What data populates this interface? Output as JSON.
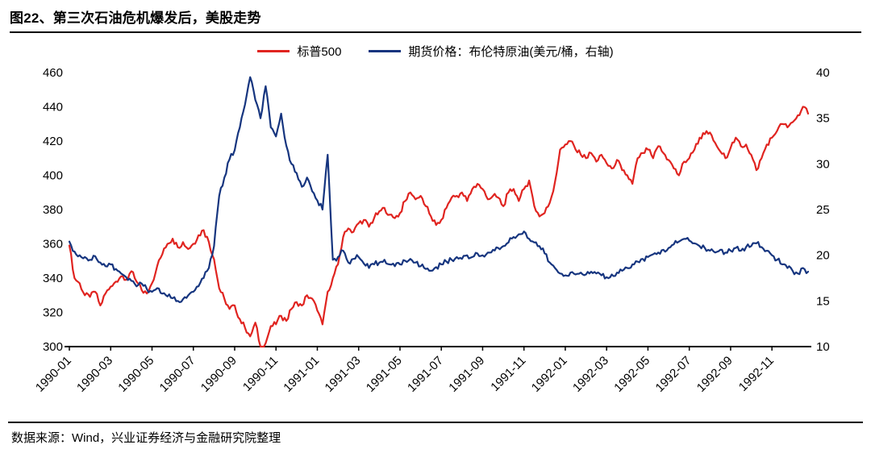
{
  "source_note": "数据来源：Wind，兴业证券经济与金融研究院整理",
  "chart_data": {
    "type": "line",
    "title": "图22、第三次石油危机爆发后，美股走势",
    "x_tick_labels": [
      "1990-01",
      "1990-03",
      "1990-05",
      "1990-07",
      "1990-09",
      "1990-11",
      "1991-01",
      "1991-03",
      "1991-05",
      "1991-07",
      "1991-09",
      "1991-11",
      "1992-01",
      "1992-03",
      "1992-05",
      "1992-07",
      "1992-09",
      "1992-11"
    ],
    "points_per_month": 4,
    "tick_every_months": 2,
    "left_axis": {
      "min": 300,
      "max": 460,
      "step": 20
    },
    "right_axis": {
      "min": 10,
      "max": 40,
      "step": 5
    },
    "grid": false,
    "legend_position": "top-center",
    "series": [
      {
        "name": "标普500",
        "axis": "left",
        "color": "#e02420",
        "values": [
          359,
          340,
          337,
          330,
          329,
          332,
          324,
          331,
          335,
          338,
          341,
          339,
          344,
          338,
          333,
          331,
          337,
          347,
          354,
          360,
          363,
          358,
          361,
          357,
          360,
          365,
          368,
          361,
          351,
          334,
          328,
          322,
          324,
          316,
          311,
          306,
          314,
          300,
          302,
          312,
          313,
          318,
          315,
          322,
          326,
          324,
          330,
          328,
          321,
          313,
          332,
          340,
          348,
          364,
          369,
          367,
          372,
          374,
          370,
          375,
          379,
          381,
          377,
          375,
          378,
          385,
          390,
          386,
          388,
          382,
          376,
          371,
          374,
          381,
          387,
          388,
          390,
          385,
          392,
          395,
          392,
          386,
          388,
          387,
          382,
          390,
          392,
          385,
          392,
          397,
          382,
          376,
          378,
          384,
          396,
          415,
          418,
          420,
          415,
          412,
          410,
          413,
          408,
          412,
          407,
          404,
          409,
          403,
          400,
          395,
          410,
          413,
          415,
          410,
          417,
          413,
          409,
          404,
          400,
          408,
          410,
          415,
          422,
          424,
          425,
          419,
          414,
          410,
          416,
          422,
          417,
          418,
          412,
          403,
          410,
          418,
          422,
          426,
          430,
          428,
          431,
          435,
          440,
          436
        ]
      },
      {
        "name": "期货价格：布伦特原油(美元/桶，右轴)",
        "axis": "right",
        "color": "#16357f",
        "values": [
          21.5,
          20.4,
          20.0,
          19.8,
          19.5,
          19.9,
          19.2,
          18.8,
          19.0,
          18.5,
          18.0,
          17.6,
          17.2,
          16.6,
          16.9,
          16.3,
          16.0,
          16.4,
          15.8,
          15.5,
          15.3,
          15.0,
          15.2,
          15.6,
          16.0,
          16.6,
          17.5,
          18.6,
          21.0,
          26.5,
          28.5,
          30.5,
          31.5,
          34.0,
          36.5,
          39.5,
          37.0,
          35.0,
          38.5,
          34.0,
          33.0,
          35.5,
          32.0,
          30.0,
          29.0,
          27.5,
          28.5,
          27.0,
          26.0,
          25.0,
          31.0,
          19.5,
          19.8,
          20.5,
          19.2,
          19.6,
          19.8,
          19.1,
          18.6,
          19.0,
          19.2,
          19.5,
          19.0,
          18.8,
          19.0,
          19.4,
          19.6,
          19.2,
          18.8,
          18.5,
          18.3,
          18.7,
          19.0,
          19.3,
          19.5,
          19.8,
          19.6,
          20.0,
          19.8,
          20.2,
          20.0,
          20.3,
          20.6,
          20.8,
          21.0,
          21.4,
          22.0,
          22.3,
          22.6,
          21.8,
          21.4,
          21.0,
          20.2,
          19.2,
          18.6,
          18.0,
          17.8,
          18.1,
          17.9,
          18.1,
          17.9,
          18.2,
          18.0,
          17.8,
          17.6,
          17.9,
          18.1,
          18.3,
          18.6,
          19.0,
          19.3,
          19.6,
          19.8,
          20.1,
          20.3,
          20.6,
          20.8,
          21.2,
          21.5,
          21.8,
          21.6,
          21.3,
          21.0,
          20.8,
          20.5,
          20.3,
          20.6,
          20.3,
          20.5,
          20.8,
          20.5,
          20.9,
          21.0,
          21.3,
          20.9,
          20.5,
          20.0,
          19.5,
          19.0,
          18.6,
          18.3,
          18.0,
          18.6,
          18.2
        ]
      }
    ]
  }
}
